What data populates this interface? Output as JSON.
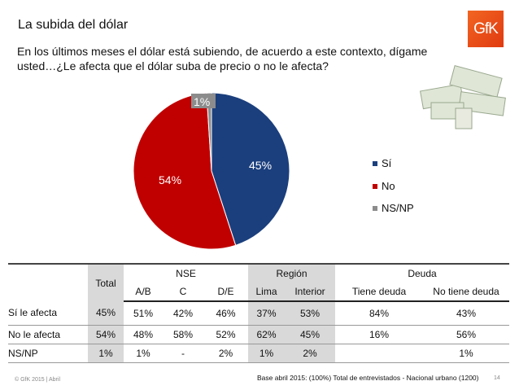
{
  "title": "La subida del dólar",
  "question": "En los últimos meses el dólar está subiendo, de acuerdo a este contexto, dígame usted…¿Le afecta que el dólar suba de precio o no le afecta?",
  "logo": "GfK",
  "chart_data": {
    "type": "pie",
    "categories": [
      "Sí",
      "No",
      "NS/NP"
    ],
    "values": [
      45,
      54,
      1
    ],
    "labels": [
      "45%",
      "54%",
      "1%"
    ],
    "colors": [
      "#1b3f7d",
      "#c00000",
      "#8c8c8c"
    ],
    "legend": "right"
  },
  "table": {
    "total_header": "Total",
    "groups": [
      "NSE",
      "Región",
      "Deuda"
    ],
    "columns": [
      "A/B",
      "C",
      "D/E",
      "Lima",
      "Interior",
      "Tiene deuda",
      "No tiene deuda"
    ],
    "rows": [
      {
        "label": "Sí le afecta",
        "values": [
          "45%",
          "51%",
          "42%",
          "46%",
          "37%",
          "53%",
          "84%",
          "43%"
        ]
      },
      {
        "label": "No le afecta",
        "values": [
          "54%",
          "48%",
          "58%",
          "52%",
          "62%",
          "45%",
          "16%",
          "56%"
        ]
      },
      {
        "label": "NS/NP",
        "values": [
          "1%",
          "1%",
          "-",
          "2%",
          "1%",
          "2%",
          "",
          "1%"
        ]
      }
    ]
  },
  "footer": {
    "left": "© GfK 2015 | Abril",
    "base": "Base abril 2015: (100%) Total de entrevistados - Nacional urbano (1200)",
    "page": "14"
  }
}
